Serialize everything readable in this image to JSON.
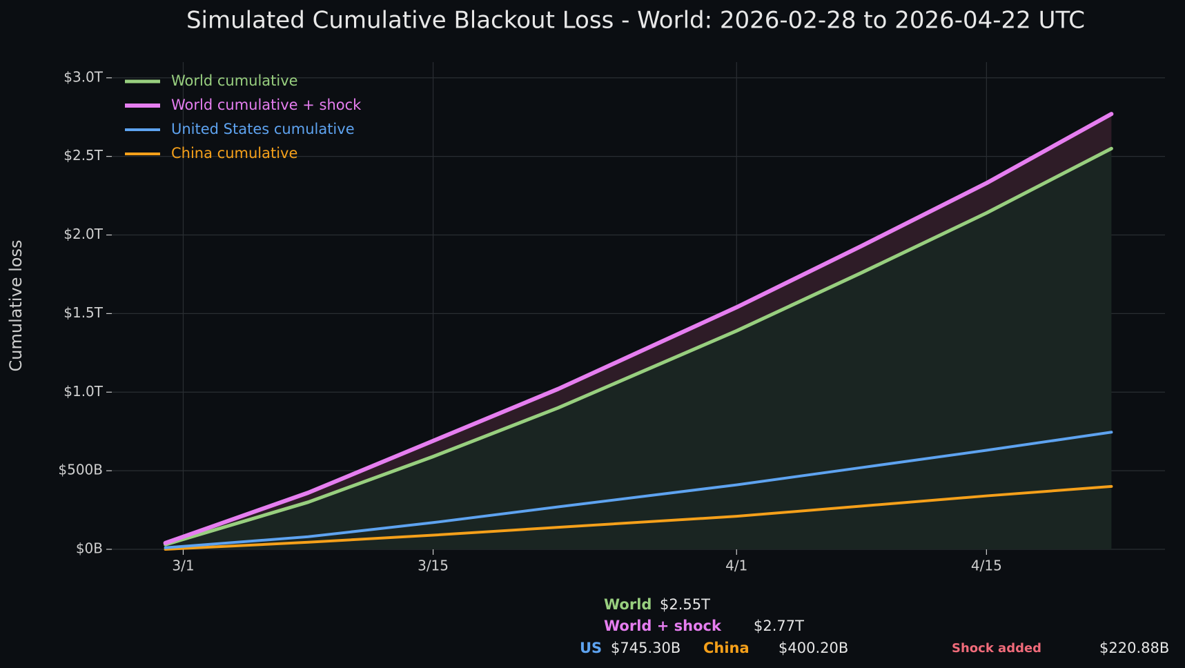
{
  "chart_data": {
    "type": "line",
    "title": "Simulated Cumulative Blackout Loss - World: 2026-02-28 to 2026-04-22 UTC",
    "y_label": "Cumulative loss",
    "x": [
      "2026-02-28",
      "2026-03-08",
      "2026-03-15",
      "2026-03-22",
      "2026-04-01",
      "2026-04-08",
      "2026-04-15",
      "2026-04-22"
    ],
    "series": [
      {
        "name": "World cumulative",
        "color": "#98cf7f",
        "values": [
          30,
          300,
          590,
          900,
          1390,
          1760,
          2140,
          2550
        ]
      },
      {
        "name": "World cumulative + shock",
        "color": "#e67ef0",
        "values": [
          40,
          360,
          690,
          1020,
          1540,
          1930,
          2330,
          2770
        ]
      },
      {
        "name": "United States cumulative",
        "color": "#5ea3f0",
        "values": [
          10,
          80,
          170,
          270,
          410,
          520,
          630,
          745.3
        ]
      },
      {
        "name": "China cumulative",
        "color": "#f5a01a",
        "values": [
          0,
          45,
          90,
          140,
          210,
          275,
          340,
          400.2
        ]
      }
    ],
    "fill_under_color": "#1a2522",
    "fill_between_color": "#2e1c27",
    "xlim": [
      "2026-02-25",
      "2026-04-25"
    ],
    "xticks": [
      {
        "value": "2026-03-01",
        "label": "3/1"
      },
      {
        "value": "2026-03-15",
        "label": "3/15"
      },
      {
        "value": "2026-04-01",
        "label": "4/1"
      },
      {
        "value": "2026-04-15",
        "label": "4/15"
      }
    ],
    "ylim": [
      0,
      3100
    ],
    "yticks": [
      {
        "value": 0,
        "label": "$0B"
      },
      {
        "value": 500,
        "label": "$500B"
      },
      {
        "value": 1000,
        "label": "$1.0T"
      },
      {
        "value": 1500,
        "label": "$1.5T"
      },
      {
        "value": 2000,
        "label": "$2.0T"
      },
      {
        "value": 2500,
        "label": "$2.5T"
      },
      {
        "value": 3000,
        "label": "$3.0T"
      }
    ],
    "grid": true,
    "legend": "upper left",
    "summary": [
      {
        "name": "World",
        "value": 2550,
        "value_label": "$2.55T",
        "color": "#98cf7f"
      },
      {
        "name": "World + shock",
        "value": 2770,
        "value_label": "$2.77T",
        "color": "#e67ef0"
      },
      {
        "name": "US",
        "value": 745.3,
        "value_label": "$745.30B",
        "color": "#5ea3f0"
      },
      {
        "name": "China",
        "value": 400.2,
        "value_label": "$400.20B",
        "color": "#f5a01a"
      },
      {
        "name": "Shock added",
        "value": 220.88,
        "value_label": "$220.88B",
        "color": "#f06b7a"
      }
    ]
  }
}
